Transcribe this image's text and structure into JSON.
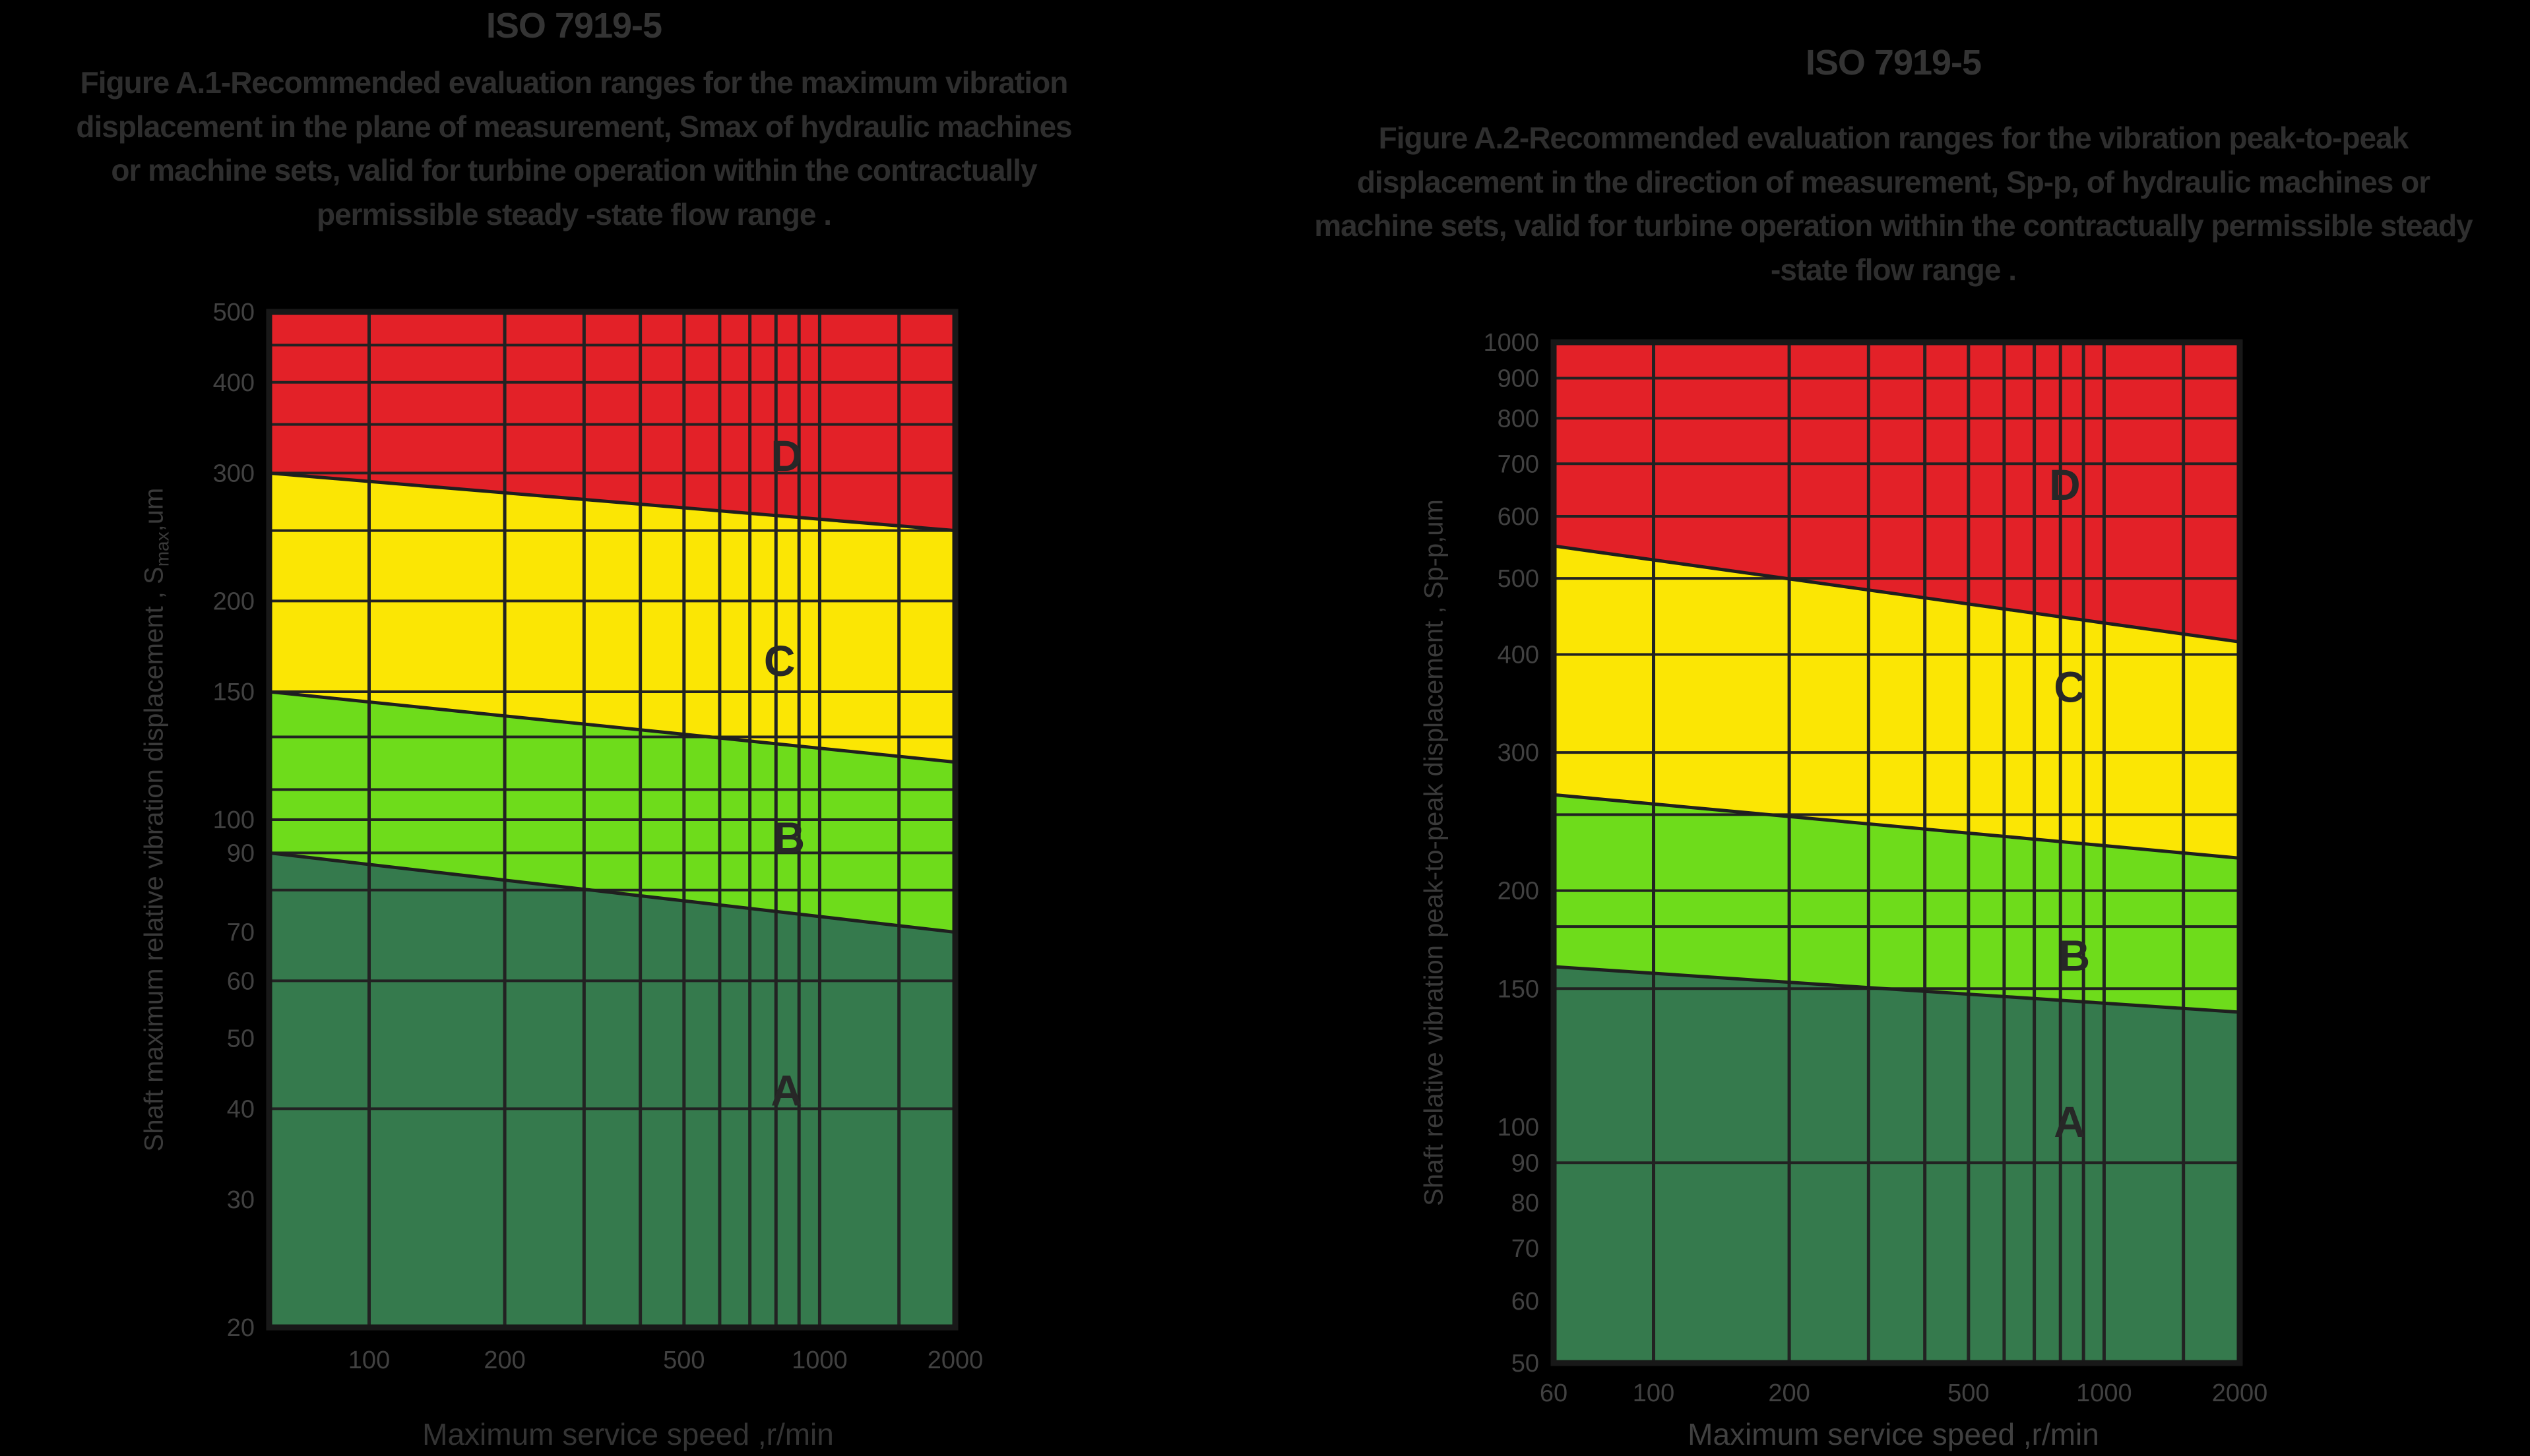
{
  "page": {
    "background": "#000000",
    "text_dim": "#2e2e2e"
  },
  "chart_data": [
    {
      "type": "area",
      "title": "ISO 7919-5",
      "caption": "Figure A.1-Recommended evaluation ranges for the maximum vibration displacement in the plane of measurement, Smax of hydraulic machines or machine sets, valid for turbine operation within the contractually permissible steady -state flow range .",
      "xlabel": "Maximum service speed ,r/min",
      "ylabel": {
        "prefix": "Shaft maximum relative vibration displacement , S",
        "sub": "max",
        "suffix": ",um"
      },
      "ylabel_text": "Shaft maximum relative vibration displacement , Smax,um",
      "log_axes": true,
      "x_range": [
        60,
        2000
      ],
      "y_range": [
        20,
        500
      ],
      "x_ticks": [
        {
          "v": 100,
          "label": "100"
        },
        {
          "v": 200,
          "label": "200"
        },
        {
          "v": 500,
          "label": "500"
        },
        {
          "v": 1000,
          "label": "1000"
        },
        {
          "v": 2000,
          "label": "2000"
        }
      ],
      "y_ticks": [
        {
          "v": 500,
          "label": "500"
        },
        {
          "v": 400,
          "label": "400"
        },
        {
          "v": 300,
          "label": "300"
        },
        {
          "v": 200,
          "label": "200"
        },
        {
          "v": 150,
          "label": "150"
        },
        {
          "v": 100,
          "label": "100"
        },
        {
          "v": 90,
          "label": "90"
        },
        {
          "v": 70,
          "label": "70"
        },
        {
          "v": 60,
          "label": "60"
        },
        {
          "v": 50,
          "label": "50"
        },
        {
          "v": 40,
          "label": "40"
        },
        {
          "v": 30,
          "label": "30"
        },
        {
          "v": 20,
          "label": "20"
        }
      ],
      "x_gridlines": [
        100,
        200,
        300,
        400,
        500,
        600,
        700,
        800,
        900,
        1000,
        1500
      ],
      "y_gridlines": [
        450,
        400,
        350,
        300,
        250,
        200,
        150,
        130,
        110,
        100,
        90,
        80,
        60,
        40
      ],
      "zones": [
        {
          "label": "A",
          "color": "#357A4D",
          "letter_fx": 0.754,
          "letter_fy": 0.766,
          "upper_boundary": {
            "x": [
              60,
              2000
            ],
            "y": [
              90,
              70
            ]
          }
        },
        {
          "label": "B",
          "color": "#6EDC1B",
          "letter_fx": 0.758,
          "letter_fy": 0.517,
          "upper_boundary": {
            "x": [
              60,
              2000
            ],
            "y": [
              150,
              120
            ]
          }
        },
        {
          "label": "C",
          "color": "#FBE604",
          "letter_fx": 0.744,
          "letter_fy": 0.343,
          "upper_boundary": {
            "x": [
              60,
              2000
            ],
            "y": [
              300,
              250
            ]
          }
        },
        {
          "label": "D",
          "color": "#E32128",
          "letter_fx": 0.754,
          "letter_fy": 0.141,
          "upper_boundary": null
        }
      ]
    },
    {
      "type": "area",
      "title": "ISO 7919-5",
      "caption": "Figure A.2-Recommended evaluation ranges for the vibration peak-to-peak displacement in the direction of measurement, Sp-p, of hydraulic machines or machine sets, valid for turbine operation within the contractually permissible steady -state flow range .",
      "xlabel": "Maximum service speed ,r/min",
      "ylabel": {
        "prefix": "Shaft relative vibration peak-to-peak displacement , Sp-p,um",
        "sub": "",
        "suffix": ""
      },
      "ylabel_text": "Shaft relative vibration peak-to-peak displacement , Sp-p,um",
      "log_axes": true,
      "x_range": [
        60,
        2000
      ],
      "y_range": [
        50,
        1000
      ],
      "x_ticks": [
        {
          "v": 60,
          "label": "60"
        },
        {
          "v": 100,
          "label": "100"
        },
        {
          "v": 200,
          "label": "200"
        },
        {
          "v": 500,
          "label": "500"
        },
        {
          "v": 1000,
          "label": "1000"
        },
        {
          "v": 2000,
          "label": "2000"
        }
      ],
      "y_ticks": [
        {
          "v": 1000,
          "label": "1000"
        },
        {
          "v": 900,
          "label": "900"
        },
        {
          "v": 800,
          "label": "800"
        },
        {
          "v": 700,
          "label": "700"
        },
        {
          "v": 600,
          "label": "600"
        },
        {
          "v": 500,
          "label": "500"
        },
        {
          "v": 400,
          "label": "400"
        },
        {
          "v": 300,
          "label": "300"
        },
        {
          "v": 200,
          "label": "200"
        },
        {
          "v": 150,
          "label": "150"
        },
        {
          "v": 100,
          "label": "100"
        },
        {
          "v": 90,
          "label": "90"
        },
        {
          "v": 80,
          "label": "80"
        },
        {
          "v": 70,
          "label": "70"
        },
        {
          "v": 60,
          "label": "60"
        },
        {
          "v": 50,
          "label": "50"
        }
      ],
      "x_gridlines": [
        100,
        200,
        300,
        400,
        500,
        600,
        700,
        800,
        900,
        1000,
        1500
      ],
      "y_gridlines": [
        900,
        800,
        700,
        600,
        500,
        400,
        300,
        250,
        200,
        180,
        150,
        90
      ],
      "zones": [
        {
          "label": "A",
          "color": "#357A4D",
          "letter_fx": 0.752,
          "letter_fy": 0.763,
          "upper_boundary": {
            "x": [
              60,
              2000
            ],
            "y": [
              160,
              140
            ]
          }
        },
        {
          "label": "B",
          "color": "#6EDC1B",
          "letter_fx": 0.759,
          "letter_fy": 0.6,
          "upper_boundary": {
            "x": [
              60,
              2000
            ],
            "y": [
              265,
              220
            ]
          }
        },
        {
          "label": "C",
          "color": "#FBE604",
          "letter_fx": 0.752,
          "letter_fy": 0.337,
          "upper_boundary": {
            "x": [
              60,
              2000
            ],
            "y": [
              550,
              415
            ]
          }
        },
        {
          "label": "D",
          "color": "#E32128",
          "letter_fx": 0.745,
          "letter_fy": 0.139,
          "upper_boundary": null
        }
      ]
    }
  ],
  "style": {
    "grid_color": "#222222",
    "boundary_color": "#1f1f1f",
    "border_color": "#181818",
    "tick_color": "#414141",
    "zone_letter_color": "#272727"
  }
}
